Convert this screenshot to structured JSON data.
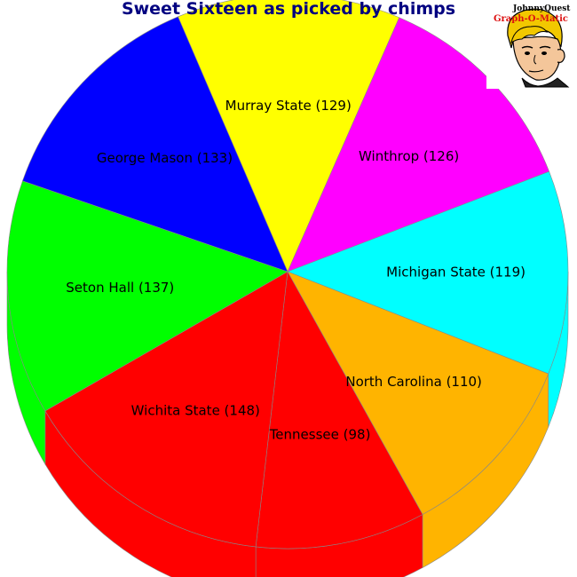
{
  "chart_data": {
    "type": "pie",
    "title": "Sweet Sixteen as picked by chimps",
    "slices": [
      {
        "label": "Murray State",
        "value": 129,
        "color": "#ffff00"
      },
      {
        "label": "Winthrop",
        "value": 126,
        "color": "#ff00ff"
      },
      {
        "label": "Michigan State",
        "value": 119,
        "color": "#00ffff"
      },
      {
        "label": "North Carolina",
        "value": 110,
        "color": "#ffb400"
      },
      {
        "label": "Tennessee",
        "value": 98,
        "color": "#ff0000"
      },
      {
        "label": "Wichita State",
        "value": 148,
        "color": "#ff0000"
      },
      {
        "label": "Seton Hall",
        "value": 137,
        "color": "#00ff00"
      },
      {
        "label": "George Mason",
        "value": 133,
        "color": "#0000ff"
      }
    ],
    "style": "3d-tilted",
    "legend": "none"
  },
  "logo": {
    "line1": "JohnnyQuest",
    "line2": "Graph-O-Matic"
  }
}
